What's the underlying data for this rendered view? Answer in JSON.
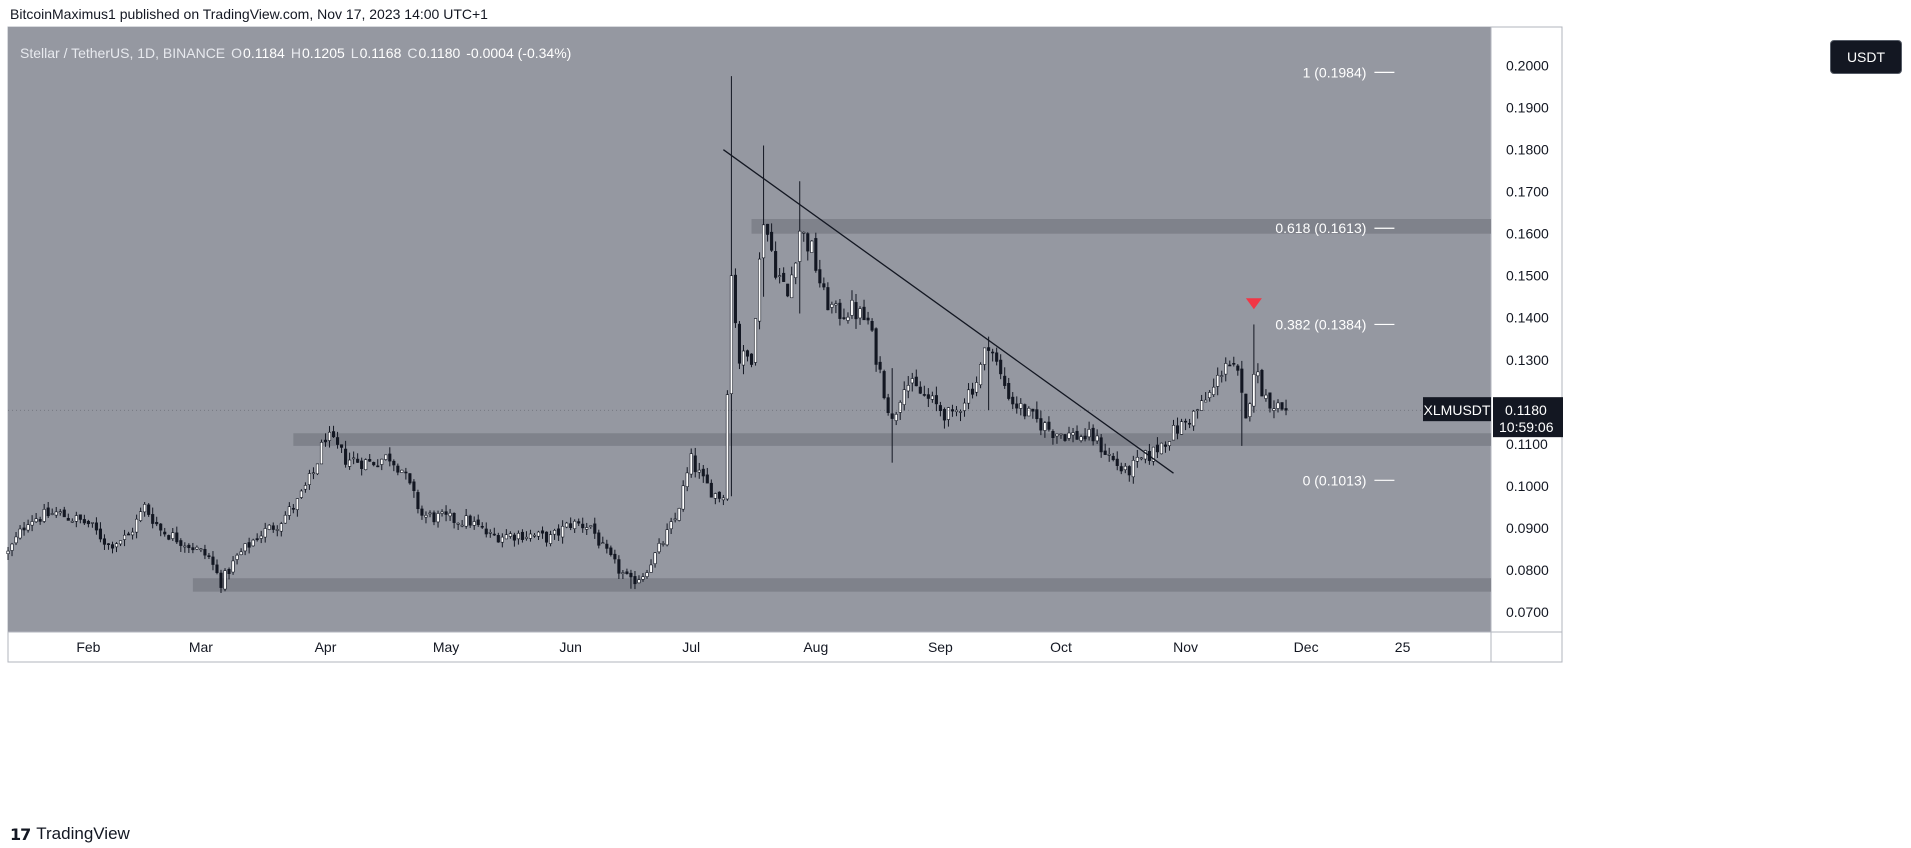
{
  "header": {
    "publisher_line": "BitcoinMaximus1 published on TradingView.com, Nov 17, 2023 14:00 UTC+1"
  },
  "symbol_bar": {
    "title": "Stellar / TetherUS, 1D, BINANCE",
    "open_label": "O",
    "open": "0.1184",
    "high_label": "H",
    "high": "0.1205",
    "low_label": "L",
    "low": "0.1168",
    "close_label": "C",
    "close": "0.1180",
    "change": "-0.0004 (-0.34%)"
  },
  "currency_badge": "USDT",
  "price_tag": {
    "symbol": "XLMUSDT",
    "price": "0.1180",
    "countdown": "10:59:06"
  },
  "footer": {
    "brand": "TradingView"
  },
  "colors": {
    "plot_bg": "#9598a1",
    "candle_up": "#ffffff",
    "candle_down": "#131722",
    "zone": "#7b7e87",
    "trendline": "#131722",
    "marker": "#f23645",
    "axis_bg": "#ffffff",
    "fib_line": "#ffffff"
  },
  "chart_data": {
    "type": "candlestick",
    "title": "Stellar / TetherUS, 1D, BINANCE",
    "ylabel": "USDT",
    "ylim": [
      0.0652,
      0.2092
    ],
    "y_ticks": [
      0.07,
      0.08,
      0.09,
      0.1,
      0.11,
      0.12,
      0.13,
      0.14,
      0.15,
      0.16,
      0.17,
      0.18,
      0.19,
      0.2
    ],
    "y_tick_labels": [
      "0.0700",
      "0.0800",
      "0.0900",
      "0.1000",
      "0.1100",
      "0.1200",
      "0.1300",
      "0.1400",
      "0.1500",
      "0.1600",
      "0.1700",
      "0.1800",
      "0.1900",
      "0.2000"
    ],
    "x_labels": [
      {
        "label": "Feb",
        "day": 20
      },
      {
        "label": "Mar",
        "day": 48
      },
      {
        "label": "Apr",
        "day": 79
      },
      {
        "label": "May",
        "day": 109
      },
      {
        "label": "Jun",
        "day": 140
      },
      {
        "label": "Jul",
        "day": 170
      },
      {
        "label": "Aug",
        "day": 201
      },
      {
        "label": "Sep",
        "day": 232
      },
      {
        "label": "Oct",
        "day": 262
      },
      {
        "label": "Nov",
        "day": 293
      },
      {
        "label": "Dec",
        "day": 323
      },
      {
        "label": "25",
        "day": 347
      }
    ],
    "x_range_days": [
      0,
      369
    ],
    "candle_day_range": [
      0,
      318
    ],
    "anchors": [
      [
        0,
        0.084
      ],
      [
        5,
        0.092
      ],
      [
        12,
        0.0935
      ],
      [
        20,
        0.091
      ],
      [
        25,
        0.086
      ],
      [
        30,
        0.088
      ],
      [
        34,
        0.095
      ],
      [
        38,
        0.0895
      ],
      [
        45,
        0.086
      ],
      [
        50,
        0.083
      ],
      [
        53,
        0.077
      ],
      [
        57,
        0.083
      ],
      [
        62,
        0.088
      ],
      [
        67,
        0.091
      ],
      [
        72,
        0.096
      ],
      [
        76,
        0.103
      ],
      [
        79,
        0.112
      ],
      [
        84,
        0.1065
      ],
      [
        90,
        0.1055
      ],
      [
        95,
        0.107
      ],
      [
        98,
        0.104
      ],
      [
        103,
        0.093
      ],
      [
        110,
        0.092
      ],
      [
        115,
        0.0915
      ],
      [
        120,
        0.088
      ],
      [
        128,
        0.0885
      ],
      [
        135,
        0.0875
      ],
      [
        140,
        0.091
      ],
      [
        145,
        0.0905
      ],
      [
        148,
        0.085
      ],
      [
        152,
        0.08
      ],
      [
        155,
        0.077
      ],
      [
        158,
        0.079
      ],
      [
        162,
        0.085
      ],
      [
        166,
        0.092
      ],
      [
        170,
        0.106
      ],
      [
        173,
        0.101
      ],
      [
        176,
        0.098
      ],
      [
        178,
        0.0975
      ],
      [
        180,
        0.15
      ],
      [
        182,
        0.13
      ],
      [
        185,
        0.131
      ],
      [
        188,
        0.164
      ],
      [
        191,
        0.152
      ],
      [
        194,
        0.145
      ],
      [
        197,
        0.161
      ],
      [
        200,
        0.156
      ],
      [
        203,
        0.145
      ],
      [
        206,
        0.141
      ],
      [
        210,
        0.142
      ],
      [
        214,
        0.139
      ],
      [
        217,
        0.127
      ],
      [
        220,
        0.115
      ],
      [
        223,
        0.125
      ],
      [
        227,
        0.122
      ],
      [
        231,
        0.119
      ],
      [
        235,
        0.116
      ],
      [
        238,
        0.121
      ],
      [
        241,
        0.125
      ],
      [
        244,
        0.1345
      ],
      [
        247,
        0.126
      ],
      [
        250,
        0.12
      ],
      [
        255,
        0.116
      ],
      [
        260,
        0.113
      ],
      [
        265,
        0.112
      ],
      [
        270,
        0.1115
      ],
      [
        275,
        0.106
      ],
      [
        278,
        0.103
      ],
      [
        282,
        0.106
      ],
      [
        285,
        0.108
      ],
      [
        289,
        0.112
      ],
      [
        293,
        0.115
      ],
      [
        297,
        0.119
      ],
      [
        300,
        0.123
      ],
      [
        303,
        0.13
      ],
      [
        306,
        0.126
      ],
      [
        308,
        0.115
      ],
      [
        310,
        0.128
      ],
      [
        313,
        0.121
      ],
      [
        316,
        0.119
      ],
      [
        318,
        0.118
      ]
    ],
    "notable_wicks": [
      {
        "day": 180,
        "high": 0.1975,
        "low": 0.0975
      },
      {
        "day": 188,
        "high": 0.181,
        "low": 0.145
      },
      {
        "day": 197,
        "high": 0.1725,
        "low": 0.141
      },
      {
        "day": 220,
        "high": 0.128,
        "low": 0.1055
      },
      {
        "day": 244,
        "high": 0.1355,
        "low": 0.118
      },
      {
        "day": 307,
        "high": 0.129,
        "low": 0.1095
      },
      {
        "day": 310,
        "high": 0.1384,
        "low": 0.118
      },
      {
        "day": 53,
        "high": 0.08,
        "low": 0.0745
      },
      {
        "day": 155,
        "high": 0.08,
        "low": 0.0755
      }
    ],
    "last_candle": {
      "open": 0.1184,
      "high": 0.1205,
      "low": 0.1168,
      "close": 0.118
    },
    "current_price": 0.118,
    "zones": [
      {
        "from_day": 185,
        "to_day": 369,
        "low": 0.16,
        "high": 0.1635
      },
      {
        "from_day": 71,
        "to_day": 369,
        "low": 0.1095,
        "high": 0.1125
      },
      {
        "from_day": 46,
        "to_day": 369,
        "low": 0.0748,
        "high": 0.078
      }
    ],
    "trendline": {
      "start": [
        178,
        0.18
      ],
      "end": [
        290,
        0.103
      ]
    },
    "fib_levels": [
      {
        "label": "1 (0.1984)",
        "value": 0.1984
      },
      {
        "label": "0.618 (0.1613)",
        "value": 0.1613
      },
      {
        "label": "0.382 (0.1384)",
        "value": 0.1384
      },
      {
        "label": "0 (0.1013)",
        "value": 0.1013
      }
    ],
    "fib_x_day": 338,
    "marker": {
      "day": 310,
      "value": 0.1432,
      "shape": "down-triangle"
    }
  }
}
